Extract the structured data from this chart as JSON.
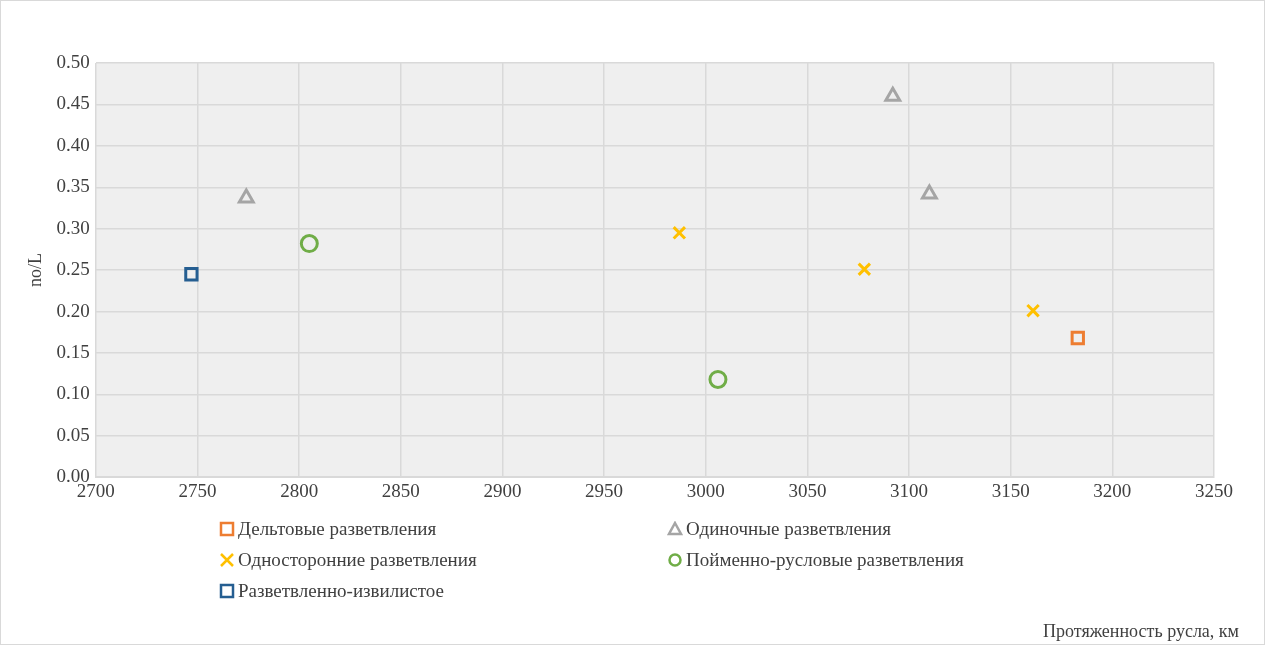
{
  "chart_data": {
    "type": "scatter",
    "annotations": [
      "Протяженность русла, км"
    ],
    "ylabel": "no/L",
    "xlim": [
      2700,
      3250
    ],
    "xticks": [
      2700,
      2750,
      2800,
      2850,
      2900,
      2950,
      3000,
      3050,
      3100,
      3150,
      3200,
      3250
    ],
    "ylim": [
      0,
      0.5
    ],
    "yticks": [
      {
        "value": 0,
        "label": "0.00"
      },
      {
        "value": 0.05,
        "label": "0.05"
      },
      {
        "value": 0.1,
        "label": "0.10"
      },
      {
        "value": 0.15,
        "label": "0.15"
      },
      {
        "value": 0.2,
        "label": "0.20"
      },
      {
        "value": 0.25,
        "label": "0.25"
      },
      {
        "value": 0.3,
        "label": "0.30"
      },
      {
        "value": 0.35,
        "label": "0.35"
      },
      {
        "value": 0.4,
        "label": "0.40"
      },
      {
        "value": 0.45,
        "label": "0.45"
      },
      {
        "value": 0.5,
        "label": "0.50"
      }
    ],
    "grid": true,
    "legend": "bottom",
    "series": [
      {
        "name": "Дельтовые разветвления",
        "color": "#ed7d31",
        "marker": "square",
        "x": [
          3183
        ],
        "values": [
          0.168
        ]
      },
      {
        "name": "Одиночные разветвления",
        "color": "#a5a5a5",
        "marker": "triangle",
        "x": [
          2774,
          3092,
          3110
        ],
        "values": [
          0.337,
          0.46,
          0.342
        ]
      },
      {
        "name": "Односторонние разветвления",
        "color": "#ffc000",
        "marker": "cross",
        "x": [
          2987,
          3078,
          3161
        ],
        "values": [
          0.295,
          0.251,
          0.201
        ]
      },
      {
        "name": "Пойменно-русловые разветвления",
        "color": "#70ad47",
        "marker": "circle",
        "x": [
          2805,
          3006
        ],
        "values": [
          0.282,
          0.118
        ]
      },
      {
        "name": "Разветвленно-извилистое",
        "color": "#255e91",
        "marker": "square",
        "x": [
          2747
        ],
        "values": [
          0.245
        ]
      }
    ]
  }
}
